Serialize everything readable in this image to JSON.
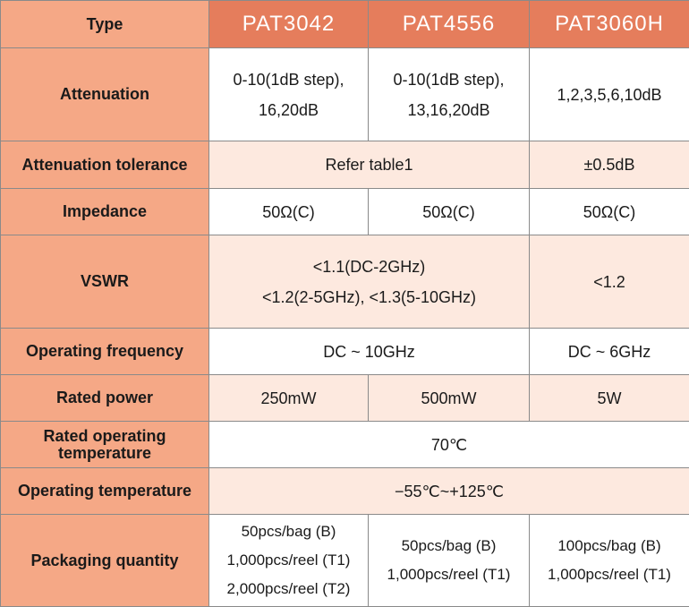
{
  "header": {
    "type_label": "Type",
    "models": [
      "PAT3042",
      "PAT4556",
      "PAT3060H"
    ]
  },
  "rows": {
    "attenuation": {
      "label": "Attenuation",
      "pat3042": [
        "0-10(1dB step),",
        "16,20dB"
      ],
      "pat4556": [
        "0-10(1dB step),",
        "13,16,20dB"
      ],
      "pat3060h": "1,2,3,5,6,10dB"
    },
    "attenuation_tolerance": {
      "label": "Attenuation tolerance",
      "pat3042_4556": "Refer table1",
      "pat3060h": "±0.5dB"
    },
    "impedance": {
      "label": "Impedance",
      "pat3042": "50Ω(C)",
      "pat4556": "50Ω(C)",
      "pat3060h": "50Ω(C)"
    },
    "vswr": {
      "label": "VSWR",
      "pat3042_4556": [
        "<1.1(DC-2GHz)",
        "<1.2(2-5GHz), <1.3(5-10GHz)"
      ],
      "pat3060h": "<1.2"
    },
    "operating_frequency": {
      "label": "Operating frequency",
      "pat3042_4556": "DC ~ 10GHz",
      "pat3060h": "DC ~ 6GHz"
    },
    "rated_power": {
      "label": "Rated power",
      "pat3042": "250mW",
      "pat4556": "500mW",
      "pat3060h": "5W"
    },
    "rated_operating_temperature": {
      "label": [
        "Rated operating",
        "temperature"
      ],
      "all": "70℃"
    },
    "operating_temperature": {
      "label": "Operating temperature",
      "all": "−55℃~+125℃"
    },
    "packaging_quantity": {
      "label": "Packaging quantity",
      "pat3042": [
        "50pcs/bag (B)",
        "1,000pcs/reel (T1)",
        "2,000pcs/reel (T2)"
      ],
      "pat4556": [
        "50pcs/bag (B)",
        "1,000pcs/reel (T1)"
      ],
      "pat3060h": [
        "100pcs/bag (B)",
        "1,000pcs/reel (T1)"
      ]
    }
  }
}
